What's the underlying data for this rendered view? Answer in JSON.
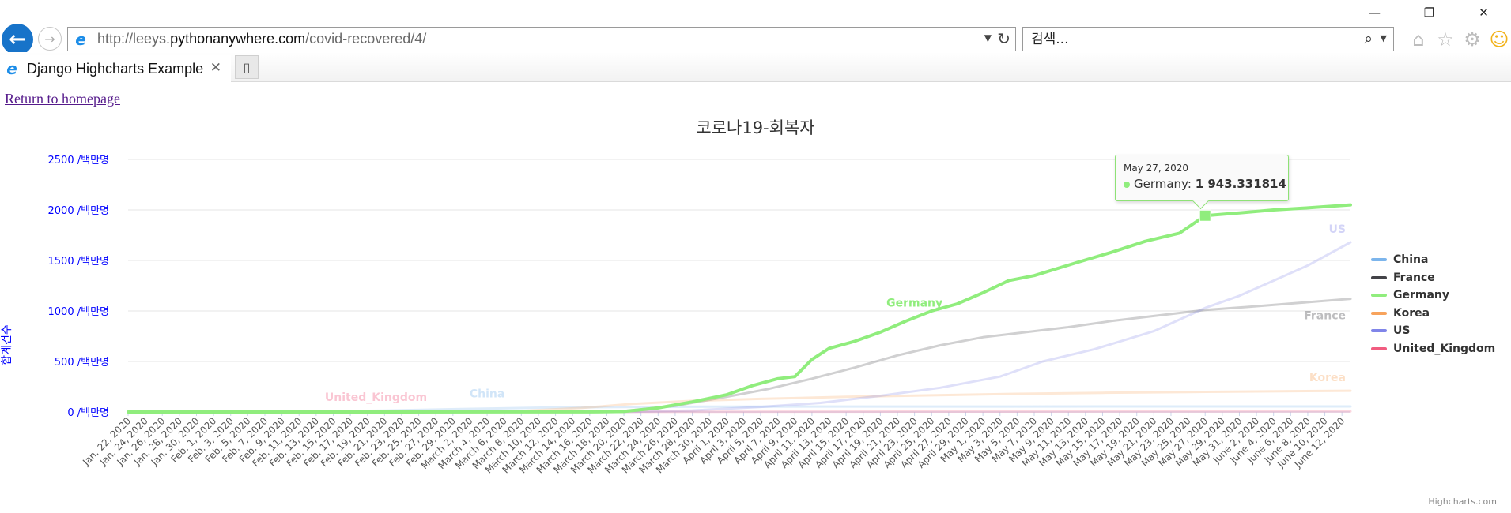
{
  "browser": {
    "url_prefix": "http://leeys.",
    "url_host": "pythonanywhere.com",
    "url_path": "/covid-recovered/4/",
    "search_placeholder": "검색...",
    "tab_title": "Django Highcharts Example"
  },
  "page": {
    "homepage_link": "Return to homepage"
  },
  "icons": {
    "back": "back-arrow-icon",
    "forward": "forward-arrow-icon",
    "refresh": "refresh-icon",
    "search": "search-icon",
    "home": "home-icon",
    "favorites": "star-icon",
    "settings": "gear-icon",
    "feedback": "smiley-icon"
  },
  "tooltip": {
    "date": "May 27, 2020",
    "series": "Germany",
    "value": "1 943.331814"
  },
  "credits": "Highcharts.com",
  "chart_data": {
    "type": "line",
    "title": "코로나19-회복자",
    "ylabel": "합계건수",
    "ytick_suffix": " /백만명",
    "ylim": [
      0,
      2500
    ],
    "yticks": [
      0,
      500,
      1000,
      1500,
      2000,
      2500
    ],
    "grid": true,
    "legend_position": "right",
    "x_start": "2020-01-22",
    "x_end": "2020-06-13",
    "x_tick_labels": [
      "Jan. 22, 2020",
      "Jan. 24, 2020",
      "Jan. 26, 2020",
      "Jan. 28, 2020",
      "Jan. 30, 2020",
      "Feb. 1, 2020",
      "Feb. 3, 2020",
      "Feb. 5, 2020",
      "Feb. 7, 2020",
      "Feb. 9, 2020",
      "Feb. 11, 2020",
      "Feb. 13, 2020",
      "Feb. 15, 2020",
      "Feb. 17, 2020",
      "Feb. 19, 2020",
      "Feb. 21, 2020",
      "Feb. 23, 2020",
      "Feb. 25, 2020",
      "Feb. 27, 2020",
      "Feb. 29, 2020",
      "March 2, 2020",
      "March 4, 2020",
      "March 6, 2020",
      "March 8, 2020",
      "March 10, 2020",
      "March 12, 2020",
      "March 14, 2020",
      "March 16, 2020",
      "March 18, 2020",
      "March 20, 2020",
      "March 22, 2020",
      "March 24, 2020",
      "March 26, 2020",
      "March 28, 2020",
      "March 30, 2020",
      "April 1, 2020",
      "April 3, 2020",
      "April 5, 2020",
      "April 7, 2020",
      "April 9, 2020",
      "April 11, 2020",
      "April 13, 2020",
      "April 15, 2020",
      "April 17, 2020",
      "April 19, 2020",
      "April 21, 2020",
      "April 23, 2020",
      "April 25, 2020",
      "April 27, 2020",
      "April 29, 2020",
      "May 1, 2020",
      "May 3, 2020",
      "May 5, 2020",
      "May 7, 2020",
      "May 9, 2020",
      "May 11, 2020",
      "May 13, 2020",
      "May 15, 2020",
      "May 17, 2020",
      "May 19, 2020",
      "May 21, 2020",
      "May 23, 2020",
      "May 25, 2020",
      "May 27, 2020",
      "May 29, 2020",
      "May 31, 2020",
      "June 2, 2020",
      "June 4, 2020",
      "June 6, 2020",
      "June 8, 2020",
      "June 10, 2020",
      "June 12, 2020"
    ],
    "tooltip_point": {
      "series": "Germany",
      "x": "2020-05-27",
      "y": 1943.33
    },
    "series": [
      {
        "name": "China",
        "color": "#7cb5ec",
        "faded": true,
        "label_at": "2020-03-04",
        "points": [
          [
            "2020-01-22",
            0
          ],
          [
            "2020-02-01",
            0.3
          ],
          [
            "2020-02-11",
            3
          ],
          [
            "2020-02-21",
            14
          ],
          [
            "2020-03-01",
            30
          ],
          [
            "2020-03-11",
            44
          ],
          [
            "2020-03-21",
            50
          ],
          [
            "2020-04-01",
            53
          ],
          [
            "2020-04-21",
            54
          ],
          [
            "2020-06-13",
            55
          ]
        ]
      },
      {
        "name": "France",
        "color": "#434348",
        "faded": true,
        "label_at": "2020-06-13",
        "points": [
          [
            "2020-01-22",
            0
          ],
          [
            "2020-03-14",
            0.2
          ],
          [
            "2020-03-20",
            10
          ],
          [
            "2020-03-26",
            60
          ],
          [
            "2020-04-01",
            150
          ],
          [
            "2020-04-06",
            230
          ],
          [
            "2020-04-11",
            330
          ],
          [
            "2020-04-16",
            440
          ],
          [
            "2020-04-21",
            560
          ],
          [
            "2020-04-26",
            660
          ],
          [
            "2020-05-01",
            740
          ],
          [
            "2020-05-06",
            790
          ],
          [
            "2020-05-11",
            840
          ],
          [
            "2020-05-16",
            900
          ],
          [
            "2020-05-21",
            950
          ],
          [
            "2020-05-27",
            1010
          ],
          [
            "2020-06-01",
            1040
          ],
          [
            "2020-06-07",
            1080
          ],
          [
            "2020-06-13",
            1120
          ]
        ]
      },
      {
        "name": "Germany",
        "color": "#90ed7d",
        "faded": false,
        "label_at": "2020-04-23",
        "points": [
          [
            "2020-01-22",
            0
          ],
          [
            "2020-03-16",
            0.5
          ],
          [
            "2020-03-20",
            5
          ],
          [
            "2020-03-24",
            40
          ],
          [
            "2020-03-28",
            100
          ],
          [
            "2020-04-01",
            170
          ],
          [
            "2020-04-04",
            260
          ],
          [
            "2020-04-07",
            330
          ],
          [
            "2020-04-09",
            350
          ],
          [
            "2020-04-11",
            520
          ],
          [
            "2020-04-13",
            630
          ],
          [
            "2020-04-16",
            700
          ],
          [
            "2020-04-19",
            790
          ],
          [
            "2020-04-22",
            900
          ],
          [
            "2020-04-25",
            1000
          ],
          [
            "2020-04-28",
            1070
          ],
          [
            "2020-05-01",
            1180
          ],
          [
            "2020-05-04",
            1300
          ],
          [
            "2020-05-07",
            1350
          ],
          [
            "2020-05-12",
            1480
          ],
          [
            "2020-05-16",
            1580
          ],
          [
            "2020-05-20",
            1690
          ],
          [
            "2020-05-24",
            1770
          ],
          [
            "2020-05-27",
            1943.33
          ],
          [
            "2020-05-31",
            1970
          ],
          [
            "2020-06-04",
            2000
          ],
          [
            "2020-06-08",
            2020
          ],
          [
            "2020-06-13",
            2050
          ]
        ]
      },
      {
        "name": "Korea",
        "color": "#f7a35c",
        "faded": true,
        "label_at": "2020-06-13",
        "points": [
          [
            "2020-01-22",
            0
          ],
          [
            "2020-02-21",
            0.5
          ],
          [
            "2020-03-01",
            1
          ],
          [
            "2020-03-08",
            10
          ],
          [
            "2020-03-15",
            40
          ],
          [
            "2020-03-21",
            80
          ],
          [
            "2020-03-28",
            110
          ],
          [
            "2020-04-05",
            130
          ],
          [
            "2020-04-15",
            150
          ],
          [
            "2020-04-25",
            165
          ],
          [
            "2020-05-05",
            180
          ],
          [
            "2020-05-15",
            190
          ],
          [
            "2020-05-25",
            198
          ],
          [
            "2020-06-05",
            205
          ],
          [
            "2020-06-13",
            210
          ]
        ]
      },
      {
        "name": "US",
        "color": "#8085e9",
        "faded": true,
        "label_at": "2020-06-13",
        "points": [
          [
            "2020-01-22",
            0
          ],
          [
            "2020-03-20",
            0.3
          ],
          [
            "2020-03-28",
            15
          ],
          [
            "2020-04-05",
            50
          ],
          [
            "2020-04-12",
            90
          ],
          [
            "2020-04-19",
            160
          ],
          [
            "2020-04-26",
            240
          ],
          [
            "2020-05-03",
            350
          ],
          [
            "2020-05-08",
            500
          ],
          [
            "2020-05-14",
            620
          ],
          [
            "2020-05-21",
            800
          ],
          [
            "2020-05-27",
            1030
          ],
          [
            "2020-05-31",
            1150
          ],
          [
            "2020-06-04",
            1300
          ],
          [
            "2020-06-08",
            1450
          ],
          [
            "2020-06-13",
            1680
          ]
        ]
      },
      {
        "name": "United_Kingdom",
        "color": "#f15c80",
        "faded": true,
        "label_at": "2020-02-20",
        "points": [
          [
            "2020-01-22",
            0
          ],
          [
            "2020-03-20",
            1
          ],
          [
            "2020-04-13",
            3
          ],
          [
            "2020-04-25",
            4
          ],
          [
            "2020-05-15",
            5
          ],
          [
            "2020-06-13",
            6
          ]
        ]
      }
    ]
  }
}
